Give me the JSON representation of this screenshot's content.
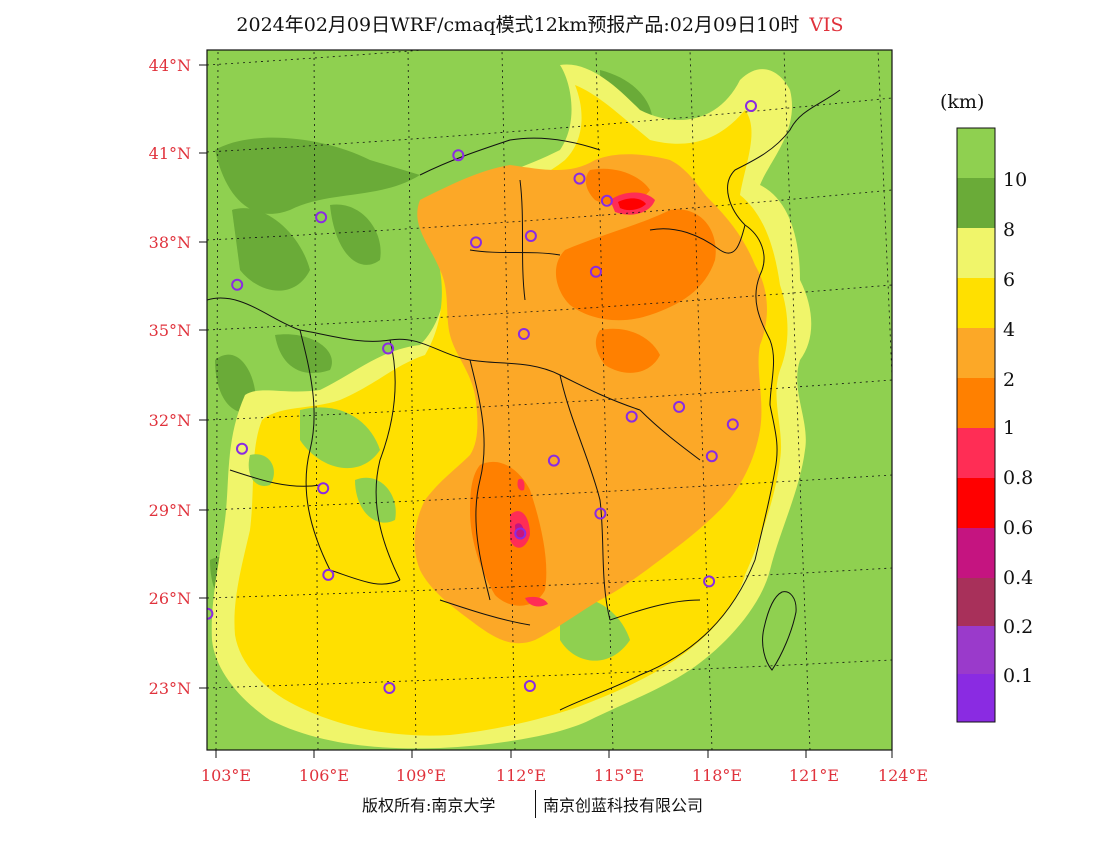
{
  "header": {
    "title": "2024年02月09日WRF/cmaq模式12km预报产品:02月09日10时",
    "variable": "VIS"
  },
  "axes": {
    "lat_labels": [
      "23°N",
      "26°N",
      "29°N",
      "32°N",
      "35°N",
      "38°N",
      "41°N",
      "44°N"
    ],
    "lon_labels": [
      "103°E",
      "106°E",
      "109°E",
      "112°E",
      "115°E",
      "118°E",
      "121°E",
      "124°E"
    ]
  },
  "colorbar": {
    "unit": "(km)",
    "labels": [
      "10",
      "8",
      "6",
      "4",
      "2",
      "1",
      "0.8",
      "0.6",
      "0.4",
      "0.2",
      "0.1"
    ],
    "colors": [
      "#8fd050",
      "#6aab38",
      "#f0f56a",
      "#ffe000",
      "#fca827",
      "#ff8000",
      "#ff2d55",
      "#ff0000",
      "#c51480",
      "#a8305a",
      "#9a3acb",
      "#8a2be2"
    ]
  },
  "stations": [
    {
      "lon": 118.9,
      "lat": 42.9
    },
    {
      "lon": 110.5,
      "lat": 40.8
    },
    {
      "lon": 114.0,
      "lat": 40.2
    },
    {
      "lon": 114.8,
      "lat": 39.5
    },
    {
      "lon": 106.5,
      "lat": 38.5
    },
    {
      "lon": 111.0,
      "lat": 37.9
    },
    {
      "lon": 112.6,
      "lat": 38.2
    },
    {
      "lon": 114.5,
      "lat": 37.1
    },
    {
      "lon": 104.0,
      "lat": 36.1
    },
    {
      "lon": 112.4,
      "lat": 34.9
    },
    {
      "lon": 108.4,
      "lat": 34.2
    },
    {
      "lon": 115.6,
      "lat": 32.3
    },
    {
      "lon": 117.0,
      "lat": 32.7
    },
    {
      "lon": 118.6,
      "lat": 32.2
    },
    {
      "lon": 104.0,
      "lat": 30.6
    },
    {
      "lon": 113.3,
      "lat": 30.7
    },
    {
      "lon": 118.0,
      "lat": 31.1
    },
    {
      "lon": 106.4,
      "lat": 29.4
    },
    {
      "lon": 114.7,
      "lat": 29.0
    },
    {
      "lon": 112.3,
      "lat": 28.2
    },
    {
      "lon": 106.5,
      "lat": 26.5
    },
    {
      "lon": 118.0,
      "lat": 26.9
    },
    {
      "lon": 102.8,
      "lat": 25.0
    },
    {
      "lon": 108.3,
      "lat": 22.8
    },
    {
      "lon": 112.6,
      "lat": 23.1
    }
  ],
  "footer": {
    "left": "版权所有:南京大学",
    "right": "南京创蓝科技有限公司"
  }
}
